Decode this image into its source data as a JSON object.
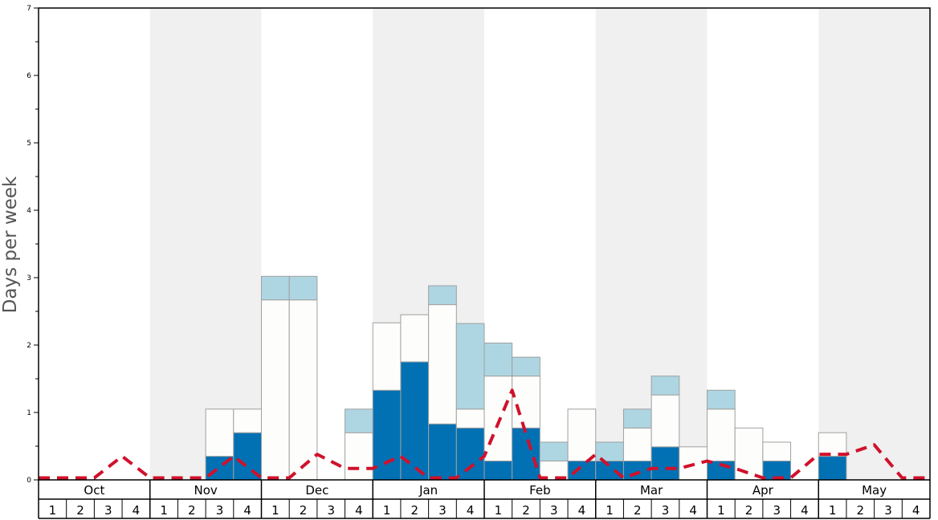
{
  "chart_data": {
    "type": "bar",
    "ylabel": "Days per week",
    "ylim": [
      0,
      7
    ],
    "yticks": [
      0,
      1,
      2,
      3,
      4,
      5,
      6,
      7
    ],
    "months": [
      "Oct",
      "Nov",
      "Dec",
      "Jan",
      "Feb",
      "Mar",
      "Apr",
      "May"
    ],
    "weeks": [
      "1",
      "2",
      "3",
      "4"
    ],
    "colors": {
      "dark": "#0171b4",
      "white": "#fdfdfb",
      "light": "#add6e2",
      "dashed_line": "#d0112b",
      "band_shade": "#f0f0f0",
      "bar_border": "#a0a0a0"
    },
    "bars": [
      {
        "dark": 0,
        "white": 0,
        "light": 0
      },
      {
        "dark": 0,
        "white": 0,
        "light": 0
      },
      {
        "dark": 0,
        "white": 0,
        "light": 0
      },
      {
        "dark": 0,
        "white": 0,
        "light": 0
      },
      {
        "dark": 0,
        "white": 0,
        "light": 0
      },
      {
        "dark": 0,
        "white": 0,
        "light": 0
      },
      {
        "dark": 0.35,
        "white": 0.7,
        "light": 0
      },
      {
        "dark": 0.7,
        "white": 0.35,
        "light": 0
      },
      {
        "dark": 0,
        "white": 2.67,
        "light": 0.35
      },
      {
        "dark": 0,
        "white": 2.67,
        "light": 0.35
      },
      {
        "dark": 0,
        "white": 0,
        "light": 0
      },
      {
        "dark": 0,
        "white": 0.7,
        "light": 0.35
      },
      {
        "dark": 1.33,
        "white": 1.0,
        "light": 0
      },
      {
        "dark": 1.75,
        "white": 0.7,
        "light": 0
      },
      {
        "dark": 0.83,
        "white": 1.77,
        "light": 0.28
      },
      {
        "dark": 0.77,
        "white": 0.28,
        "light": 1.27
      },
      {
        "dark": 0.28,
        "white": 1.26,
        "light": 0.49
      },
      {
        "dark": 0.77,
        "white": 0.77,
        "light": 0.28
      },
      {
        "dark": 0,
        "white": 0.28,
        "light": 0.28
      },
      {
        "dark": 0.28,
        "white": 0.77,
        "light": 0
      },
      {
        "dark": 0.28,
        "white": 0,
        "light": 0.28
      },
      {
        "dark": 0.28,
        "white": 0.49,
        "light": 0.28
      },
      {
        "dark": 0.49,
        "white": 0.77,
        "light": 0.28
      },
      {
        "dark": 0,
        "white": 0.49,
        "light": 0
      },
      {
        "dark": 0.28,
        "white": 0.77,
        "light": 0.28
      },
      {
        "dark": 0,
        "white": 0.77,
        "light": 0
      },
      {
        "dark": 0.28,
        "white": 0.28,
        "light": 0
      },
      {
        "dark": 0,
        "white": 0,
        "light": 0
      },
      {
        "dark": 0.35,
        "white": 0.35,
        "light": 0
      },
      {
        "dark": 0,
        "white": 0,
        "light": 0
      },
      {
        "dark": 0,
        "white": 0,
        "light": 0
      },
      {
        "dark": 0,
        "white": 0,
        "light": 0
      }
    ],
    "line": [
      0.03,
      0.03,
      0.03,
      0.35,
      0.03,
      0.03,
      0.03,
      0.35,
      0.03,
      0.03,
      0.38,
      0.17,
      0.17,
      0.35,
      0.03,
      0.03,
      0.35,
      1.33,
      0.03,
      0.03,
      0.38,
      0.03,
      0.17,
      0.17,
      0.28,
      0.17,
      0.03,
      0.03,
      0.38,
      0.38,
      0.52,
      0.03,
      0.03
    ]
  }
}
